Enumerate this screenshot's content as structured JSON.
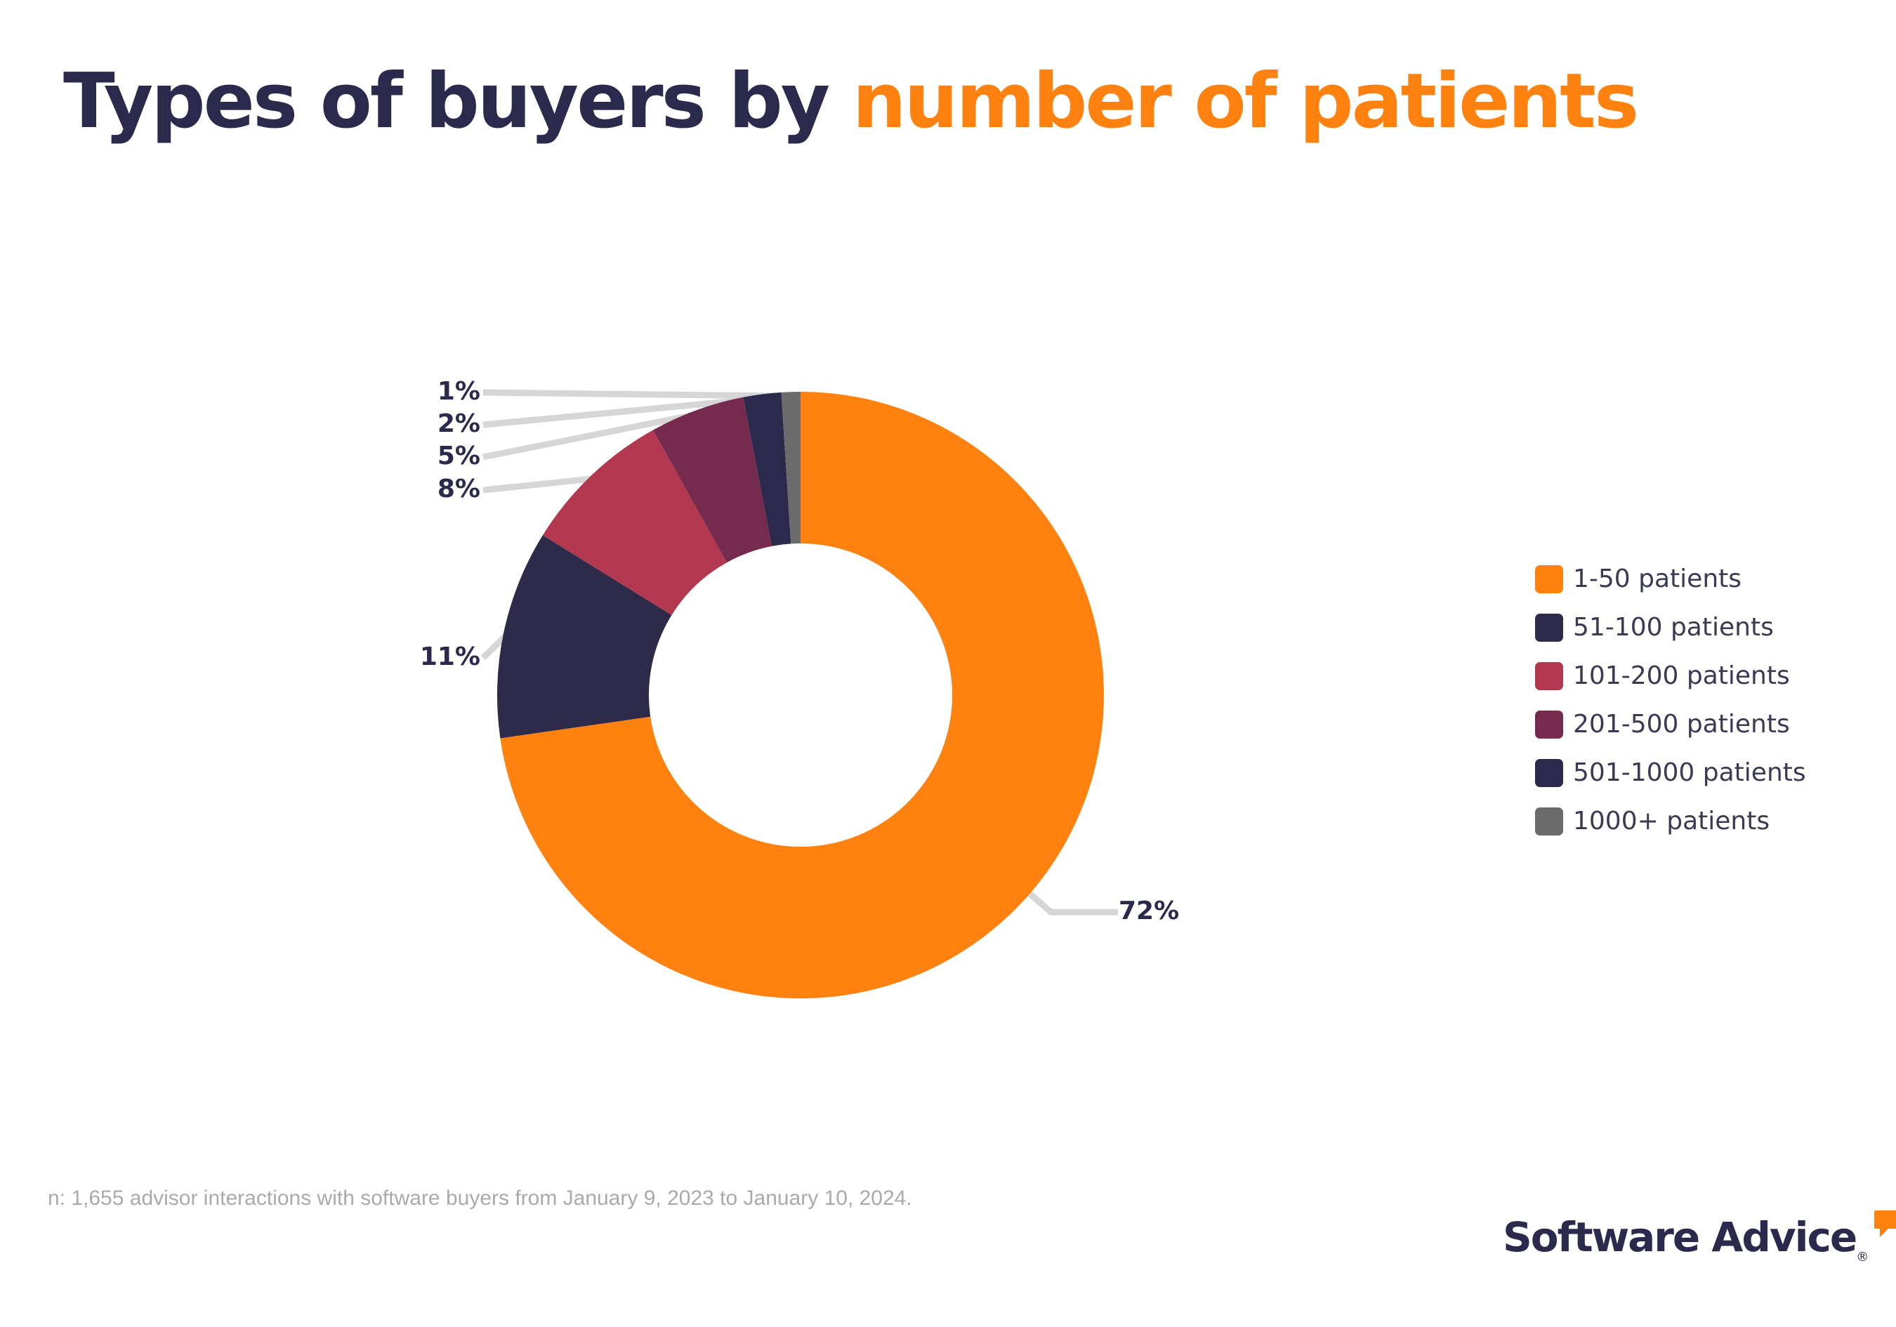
{
  "title": {
    "part1": "Types of buyers by",
    "part2": "number of patients"
  },
  "colors": {
    "title_dark": "#2b2a4c",
    "title_accent": "#ff8210"
  },
  "chart_data": {
    "type": "pie",
    "variant": "donut",
    "labels": [
      "1-50 patients",
      "51-100 patients",
      "101-200 patients",
      "201-500 patients",
      "501-1000 patients",
      "1000+ patients"
    ],
    "values": [
      72,
      11,
      8,
      5,
      2,
      1
    ],
    "value_labels": [
      "72%",
      "11%",
      "8%",
      "5%",
      "2%",
      "1%"
    ],
    "colors": [
      "#ff8210",
      "#2d2a4a",
      "#b23850",
      "#762b4e",
      "#2b2a4c",
      "#6b6b6b"
    ],
    "legend_position": "right"
  },
  "footnote": "n: 1,655 advisor interactions with software buyers from January 9, 2023 to January 10, 2024.",
  "brand": {
    "name": "Software Advice",
    "registered": "®",
    "name_color": "#2b2a4c",
    "bubble_color": "#ff8210",
    "logo_icon": "speech-bubble-icon"
  }
}
